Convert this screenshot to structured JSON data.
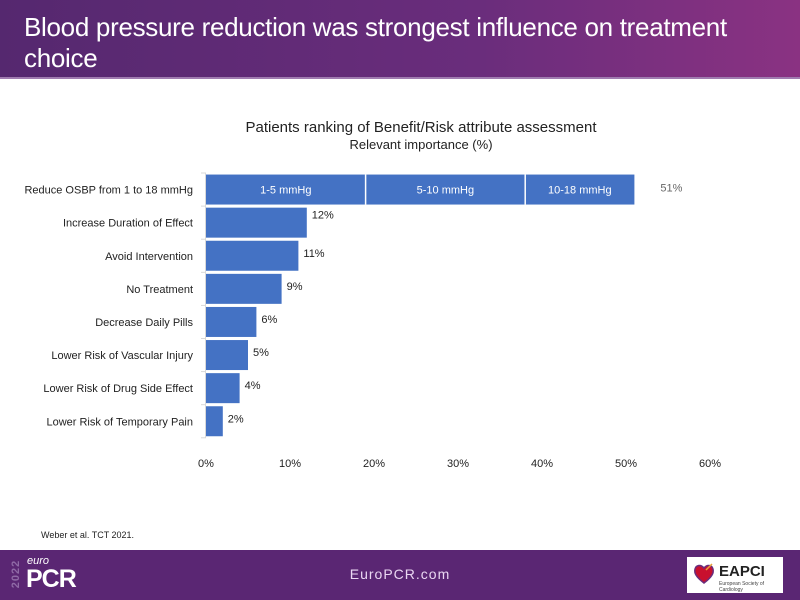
{
  "header": {
    "title": "Blood pressure reduction was strongest influence on treatment choice"
  },
  "chart_data": {
    "type": "bar",
    "orientation": "horizontal",
    "title": "Patients ranking of Benefit/Risk attribute assessment",
    "subtitle": "Relevant importance (%)",
    "xlabel": "",
    "ylabel": "",
    "xlim": [
      0,
      60
    ],
    "x_ticks": [
      0,
      10,
      20,
      30,
      40,
      50,
      60
    ],
    "x_tick_labels": [
      "0%",
      "10%",
      "20%",
      "30%",
      "40%",
      "50%",
      "60%"
    ],
    "grid": false,
    "bar_color": "#4472c4",
    "categories": [
      "Reduce OSBP from 1 to 18 mmHg",
      "Increase Duration of Effect",
      "Avoid Intervention",
      "No Treatment",
      "Decrease Daily Pills",
      "Lower Risk of Vascular Injury",
      "Lower Risk of Drug Side Effect",
      "Lower Risk of Temporary Pain"
    ],
    "values": [
      51,
      12,
      11,
      9,
      6,
      5,
      4,
      2
    ],
    "value_labels": [
      "51%",
      "12%",
      "11%",
      "9%",
      "6%",
      "5%",
      "4%",
      "2%"
    ],
    "stacked_first_bar": {
      "segments": [
        {
          "name": "1-5 mmHg",
          "value": 19
        },
        {
          "name": "5-10 mmHg",
          "value": 19
        },
        {
          "name": "10-18 mmHg",
          "value": 13
        }
      ]
    }
  },
  "citation": "Weber et al. TCT 2021.",
  "footer": {
    "logo_year": "2022",
    "logo_euro": "euro",
    "logo_pcr": "PCR",
    "url": "EuroPCR.com",
    "partner_logo": "EAPCI",
    "partner_sub": "European Society of Cardiology"
  }
}
